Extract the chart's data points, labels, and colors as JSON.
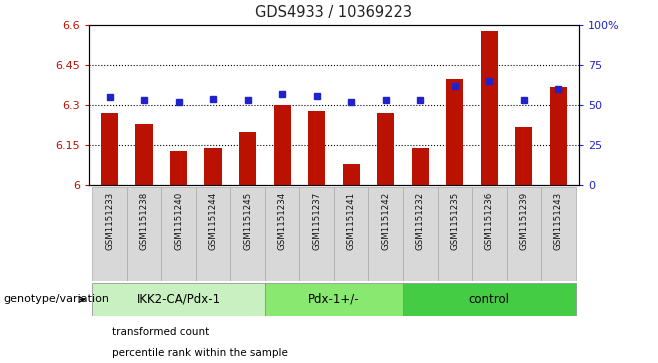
{
  "title": "GDS4933 / 10369223",
  "samples": [
    "GSM1151233",
    "GSM1151238",
    "GSM1151240",
    "GSM1151244",
    "GSM1151245",
    "GSM1151234",
    "GSM1151237",
    "GSM1151241",
    "GSM1151242",
    "GSM1151232",
    "GSM1151235",
    "GSM1151236",
    "GSM1151239",
    "GSM1151243"
  ],
  "transformed_count": [
    6.27,
    6.23,
    6.13,
    6.14,
    6.2,
    6.3,
    6.28,
    6.08,
    6.27,
    6.14,
    6.4,
    6.58,
    6.22,
    6.37
  ],
  "percentile_rank": [
    55,
    53,
    52,
    54,
    53,
    57,
    56,
    52,
    53,
    53,
    62,
    65,
    53,
    60
  ],
  "groups": [
    {
      "label": "IKK2-CA/Pdx-1",
      "start": 0,
      "end": 5,
      "color": "#c8f0c0"
    },
    {
      "label": "Pdx-1+/-",
      "start": 5,
      "end": 9,
      "color": "#88e870"
    },
    {
      "label": "control",
      "start": 9,
      "end": 14,
      "color": "#44cc44"
    }
  ],
  "ylim_left": [
    6.0,
    6.6
  ],
  "ylim_right": [
    0,
    100
  ],
  "yticks_left": [
    6.0,
    6.15,
    6.3,
    6.45,
    6.6
  ],
  "yticks_right": [
    0,
    25,
    50,
    75,
    100
  ],
  "ytick_labels_left": [
    "6",
    "6.15",
    "6.3",
    "6.45",
    "6.6"
  ],
  "ytick_labels_right": [
    "0",
    "25",
    "50",
    "75",
    "100%"
  ],
  "hlines": [
    6.15,
    6.3,
    6.45
  ],
  "bar_color": "#bb1100",
  "dot_color": "#2222cc",
  "bar_width": 0.5,
  "genotype_label": "genotype/variation",
  "legend_items": [
    {
      "color": "#bb1100",
      "marker": "s",
      "label": "transformed count"
    },
    {
      "color": "#2222cc",
      "marker": "s",
      "label": "percentile rank within the sample"
    }
  ]
}
